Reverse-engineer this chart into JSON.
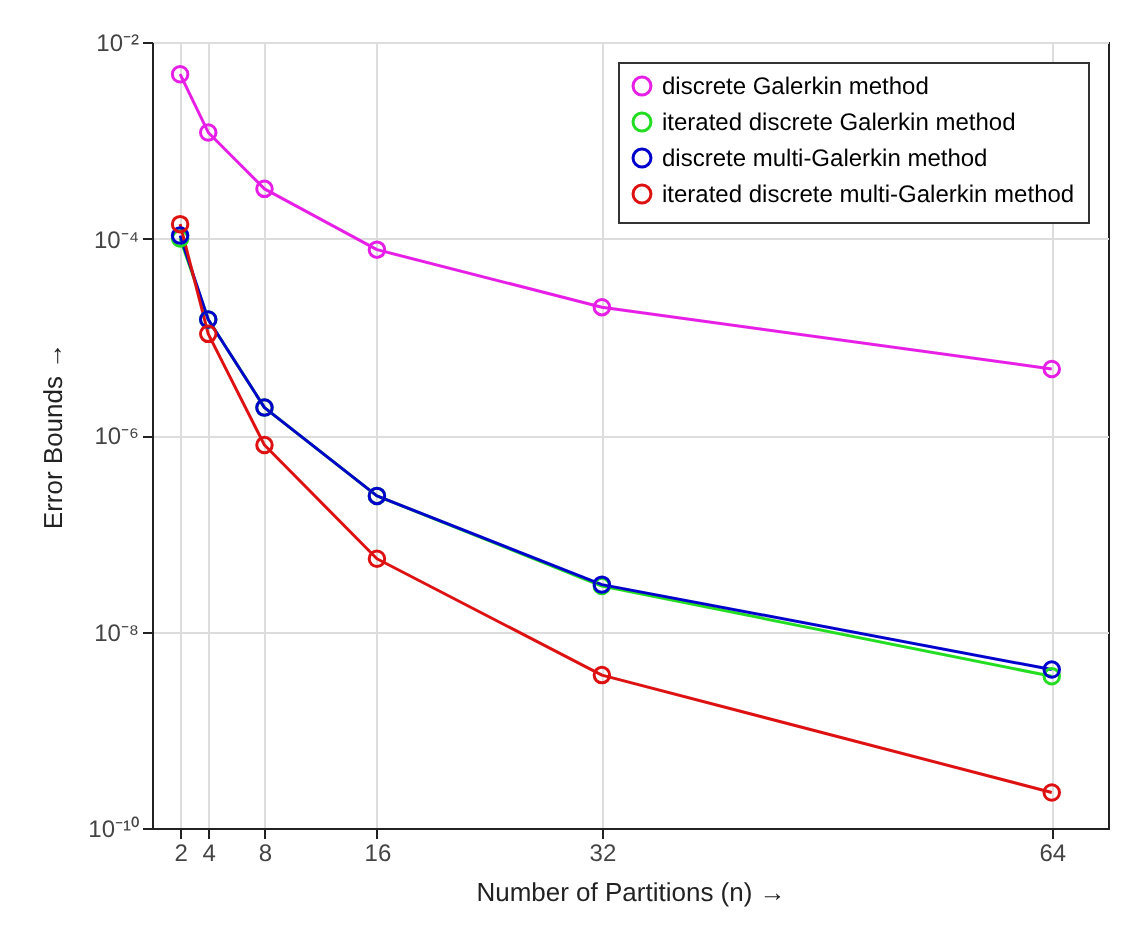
{
  "chart_data": {
    "type": "line",
    "xlabel": "Number of Partitions (n) →",
    "ylabel": "Error Bounds →",
    "x": [
      2,
      4,
      8,
      16,
      32,
      64
    ],
    "series": [
      {
        "name": "discrete Galerkin method",
        "color": "#e61ee6",
        "values": [
          0.0047,
          0.0012,
          0.00032,
          7.7e-05,
          2e-05,
          4.7e-06
        ]
      },
      {
        "name": "iterated discrete Galerkin method",
        "color": "#22dd22",
        "values": [
          0.0001,
          1.5e-05,
          1.9e-06,
          2.4e-07,
          2.9e-08,
          3.5e-09
        ]
      },
      {
        "name": "discrete multi-Galerkin method",
        "color": "#0000cc",
        "values": [
          0.000107,
          1.5e-05,
          1.9e-06,
          2.4e-07,
          3e-08,
          4.1e-09
        ]
      },
      {
        "name": "iterated discrete multi-Galerkin method",
        "color": "#dd1111",
        "values": [
          0.00014,
          1.07e-05,
          7.9e-07,
          5.5e-08,
          3.6e-09,
          2.3e-10
        ]
      }
    ],
    "log": "y",
    "xlim": [
      0,
      68
    ],
    "xticks": [
      2,
      4,
      8,
      16,
      32,
      64
    ],
    "ylim": [
      1e-10,
      0.01
    ],
    "yticks": [
      {
        "value": 1e-10,
        "label": "10⁻¹⁰"
      },
      {
        "value": 1e-08,
        "label": "10⁻⁸"
      },
      {
        "value": 1e-06,
        "label": "10⁻⁶"
      },
      {
        "value": 0.0001,
        "label": "10⁻⁴"
      },
      {
        "value": 0.01,
        "label": "10⁻²"
      }
    ],
    "grid": true,
    "legend": "top right",
    "marker": "circle",
    "line_style": "solid"
  }
}
